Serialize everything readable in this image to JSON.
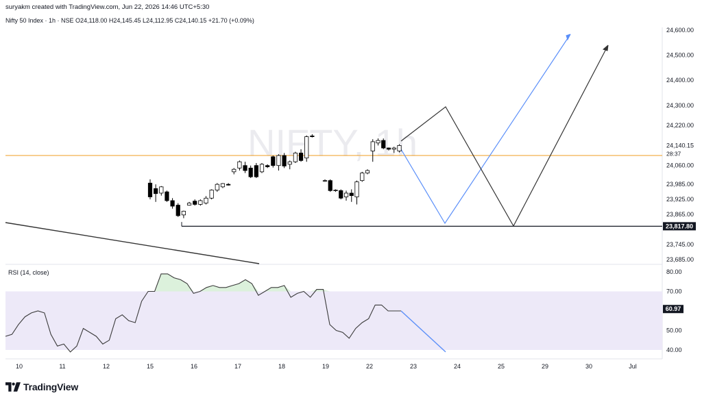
{
  "header": {
    "credit": "suryakm created with TradingView.com, Jun 22, 2026 14:46 UTC+5:30",
    "symbol_line": "Nifty 50 Index · 1h · NSE  O24,118.00  H24,145.45  L24,112.95  C24,140.15  +21.70 (+0.09%)"
  },
  "watermark": "NIFTY, 1h",
  "footer": {
    "brand": "TradingView"
  },
  "colors": {
    "up_candle": "#ffffff",
    "down_candle": "#000000",
    "horizontal_line": "#f2a93b",
    "blue_path": "#5b8ff9",
    "black_path": "#333333",
    "rsi_line": "#3a3a3a",
    "rsi_band": "#ede9f8",
    "rsi_fill": "#d8efd8"
  },
  "chart_data": [
    {
      "type": "candlestick",
      "title": "",
      "xlabel": "",
      "ylabel": "",
      "x_ticks": [
        "10",
        "11",
        "12",
        "15",
        "16",
        "17",
        "18",
        "19",
        "22",
        "23",
        "24",
        "25",
        "29",
        "30",
        "Jul"
      ],
      "y_ticks": [
        "24,600.00",
        "24,500.00",
        "24,400.00",
        "24,300.00",
        "24,220.00",
        "24,140.15",
        "28:37",
        "24,060.00",
        "23,985.00",
        "23,925.00",
        "23,865.00",
        "23,817.80",
        "23,745.00",
        "23,685.00"
      ],
      "last_price": 24140.15,
      "countdown": "28:37",
      "ylim": [
        23685,
        24600
      ],
      "candles": [
        {
          "o": 23990,
          "h": 24005,
          "l": 23925,
          "c": 23935
        },
        {
          "o": 23968,
          "h": 23985,
          "l": 23915,
          "c": 23948
        },
        {
          "o": 23950,
          "h": 23978,
          "l": 23940,
          "c": 23975
        },
        {
          "o": 23955,
          "h": 23960,
          "l": 23915,
          "c": 23920
        },
        {
          "o": 23920,
          "h": 23930,
          "l": 23888,
          "c": 23898
        },
        {
          "o": 23902,
          "h": 23910,
          "l": 23855,
          "c": 23860
        },
        {
          "o": 23863,
          "h": 23880,
          "l": 23850,
          "c": 23878
        },
        {
          "o": 23902,
          "h": 23915,
          "l": 23900,
          "c": 23910
        },
        {
          "o": 23918,
          "h": 23925,
          "l": 23900,
          "c": 23905
        },
        {
          "o": 23905,
          "h": 23925,
          "l": 23900,
          "c": 23920
        },
        {
          "o": 23910,
          "h": 23938,
          "l": 23905,
          "c": 23930
        },
        {
          "o": 23930,
          "h": 23965,
          "l": 23925,
          "c": 23962
        },
        {
          "o": 23962,
          "h": 23990,
          "l": 23955,
          "c": 23985
        },
        {
          "o": 23975,
          "h": 23990,
          "l": 23970,
          "c": 23988
        },
        {
          "o": 23985,
          "h": 23990,
          "l": 23980,
          "c": 23982
        },
        {
          "o": 24035,
          "h": 24050,
          "l": 24025,
          "c": 24045
        },
        {
          "o": 24050,
          "h": 24080,
          "l": 24040,
          "c": 24075
        },
        {
          "o": 24060,
          "h": 24075,
          "l": 24030,
          "c": 24040
        },
        {
          "o": 24050,
          "h": 24060,
          "l": 24010,
          "c": 24015
        },
        {
          "o": 24060,
          "h": 24070,
          "l": 24010,
          "c": 24015
        },
        {
          "o": 24035,
          "h": 24070,
          "l": 24030,
          "c": 24065
        },
        {
          "o": 24060,
          "h": 24065,
          "l": 24050,
          "c": 24055
        },
        {
          "o": 24095,
          "h": 24100,
          "l": 24052,
          "c": 24060
        },
        {
          "o": 24060,
          "h": 24105,
          "l": 24040,
          "c": 24100
        },
        {
          "o": 24100,
          "h": 24110,
          "l": 24050,
          "c": 24058
        },
        {
          "o": 24065,
          "h": 24080,
          "l": 24045,
          "c": 24075
        },
        {
          "o": 24075,
          "h": 24115,
          "l": 24070,
          "c": 24110
        },
        {
          "o": 24110,
          "h": 24125,
          "l": 24075,
          "c": 24080
        },
        {
          "o": 24090,
          "h": 24180,
          "l": 24075,
          "c": 24175
        },
        {
          "o": 24178,
          "h": 24185,
          "l": 24172,
          "c": 24175
        },
        {
          "o": 24000,
          "h": 24005,
          "l": 23995,
          "c": 24000
        },
        {
          "o": 24000,
          "h": 24005,
          "l": 23955,
          "c": 23960
        },
        {
          "o": 23960,
          "h": 23965,
          "l": 23955,
          "c": 23962
        },
        {
          "o": 23960,
          "h": 23965,
          "l": 23925,
          "c": 23930
        },
        {
          "o": 23935,
          "h": 23960,
          "l": 23920,
          "c": 23950
        },
        {
          "o": 23950,
          "h": 23965,
          "l": 23915,
          "c": 23940
        },
        {
          "o": 23935,
          "h": 24000,
          "l": 23905,
          "c": 23995
        },
        {
          "o": 24000,
          "h": 24035,
          "l": 23995,
          "c": 24030
        },
        {
          "o": 24030,
          "h": 24045,
          "l": 24025,
          "c": 24040
        },
        {
          "o": 24118,
          "h": 24165,
          "l": 24075,
          "c": 24155
        },
        {
          "o": 24150,
          "h": 24168,
          "l": 24140,
          "c": 24160
        },
        {
          "o": 24160,
          "h": 24168,
          "l": 24125,
          "c": 24130
        },
        {
          "o": 24130,
          "h": 24132,
          "l": 24120,
          "c": 24125
        },
        {
          "o": 24125,
          "h": 24135,
          "l": 24110,
          "c": 24130
        },
        {
          "o": 24118,
          "h": 24145,
          "l": 24112,
          "c": 24140
        }
      ],
      "horizontal_levels": [
        24100,
        23817.8
      ]
    },
    {
      "type": "line",
      "title": "RSI (14, close)",
      "value_label": "60.97",
      "series_name": "RSI",
      "y_ticks": [
        "80.00",
        "70.00",
        "60.97",
        "50.00",
        "40.00"
      ],
      "ylim": [
        36,
        84
      ],
      "band": [
        40,
        70
      ],
      "values": [
        47,
        48,
        53,
        57,
        59,
        60,
        59,
        48,
        42,
        43,
        39,
        42,
        51,
        49,
        47,
        43,
        45,
        56,
        58,
        55,
        54,
        65,
        70,
        70,
        79,
        79,
        77,
        76,
        74,
        69,
        70,
        72,
        73,
        72,
        72,
        73,
        74,
        76,
        74,
        68,
        70,
        72,
        72,
        73,
        67,
        69,
        70,
        67,
        71,
        71,
        53,
        50,
        49,
        46,
        51,
        54,
        56,
        63,
        63,
        60,
        60,
        60
      ]
    }
  ]
}
